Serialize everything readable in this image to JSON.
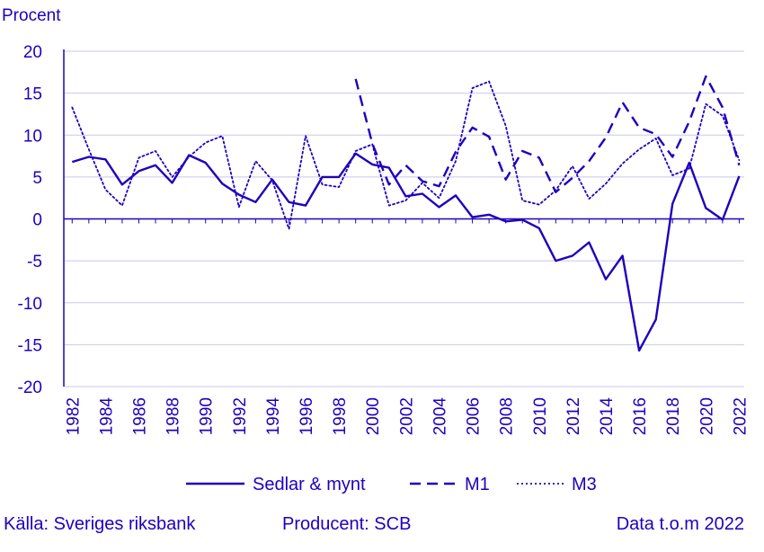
{
  "chart_data": {
    "type": "line",
    "unit_label": "Procent",
    "ylim": [
      -20,
      20
    ],
    "y_ticks": [
      20,
      15,
      10,
      5,
      0,
      -5,
      -10,
      -15,
      -20
    ],
    "x_ticks": [
      1982,
      1984,
      1986,
      1988,
      1990,
      1992,
      1994,
      1996,
      1998,
      2000,
      2002,
      2004,
      2006,
      2008,
      2010,
      2012,
      2014,
      2016,
      2018,
      2020,
      2022
    ],
    "grid": true,
    "legend_position": "bottom",
    "series": [
      {
        "name": "Sedlar & mynt",
        "style": "solid",
        "x": [
          1982,
          1983,
          1984,
          1985,
          1986,
          1987,
          1988,
          1989,
          1990,
          1991,
          1992,
          1993,
          1994,
          1995,
          1996,
          1997,
          1998,
          1999,
          2000,
          2001,
          2002,
          2003,
          2004,
          2005,
          2006,
          2007,
          2008,
          2009,
          2010,
          2011,
          2012,
          2013,
          2014,
          2015,
          2016,
          2017,
          2018,
          2019,
          2020,
          2021,
          2022
        ],
        "values": [
          6.8,
          7.4,
          7.1,
          4.1,
          5.7,
          6.4,
          4.3,
          7.6,
          6.7,
          4.2,
          2.9,
          2.0,
          4.7,
          2.0,
          1.6,
          5.0,
          5.0,
          7.8,
          6.5,
          6.1,
          2.7,
          3.0,
          1.4,
          2.8,
          0.2,
          0.5,
          -0.3,
          -0.1,
          -1.1,
          -5.0,
          -4.4,
          -2.8,
          -7.2,
          -4.4,
          -15.7,
          -12.0,
          1.8,
          6.7,
          1.3,
          -0.1,
          5.1
        ]
      },
      {
        "name": "M1",
        "style": "dashed",
        "x": [
          1999,
          2000,
          2001,
          2002,
          2003,
          2004,
          2005,
          2006,
          2007,
          2008,
          2009,
          2010,
          2011,
          2012,
          2013,
          2014,
          2015,
          2016,
          2017,
          2018,
          2019,
          2020,
          2021,
          2022
        ],
        "values": [
          16.7,
          9.0,
          4.1,
          6.4,
          4.5,
          3.9,
          8.0,
          10.9,
          9.8,
          4.7,
          8.1,
          7.3,
          3.2,
          4.9,
          6.9,
          9.7,
          13.9,
          10.9,
          10.1,
          7.4,
          11.6,
          17.0,
          13.3,
          6.4
        ]
      },
      {
        "name": "M3",
        "style": "dotted",
        "x": [
          1982,
          1983,
          1984,
          1985,
          1986,
          1987,
          1988,
          1989,
          1990,
          1991,
          1992,
          1993,
          1994,
          1995,
          1996,
          1997,
          1998,
          1999,
          2000,
          2001,
          2002,
          2003,
          2004,
          2005,
          2006,
          2007,
          2008,
          2009,
          2010,
          2011,
          2012,
          2013,
          2014,
          2015,
          2016,
          2017,
          2018,
          2019,
          2020,
          2021,
          2022
        ],
        "values": [
          13.3,
          8.3,
          3.5,
          1.6,
          7.3,
          8.1,
          5.0,
          7.4,
          9.1,
          9.9,
          1.4,
          6.9,
          4.6,
          -1.2,
          9.9,
          4.1,
          3.8,
          8.1,
          8.9,
          1.6,
          2.2,
          4.3,
          2.5,
          6.9,
          15.6,
          16.4,
          11.1,
          2.2,
          1.7,
          3.4,
          6.3,
          2.4,
          4.2,
          6.6,
          8.3,
          9.6,
          5.2,
          6.0,
          13.7,
          12.3,
          7.0
        ]
      }
    ]
  },
  "footer": {
    "source": "Källa: Sveriges riksbank",
    "producer": "Producent: SCB",
    "data_until": "Data t.o.m 2022"
  },
  "colors": {
    "series": "#1e00be",
    "grid": "#c8c8ec",
    "axis": "#1e00be"
  }
}
